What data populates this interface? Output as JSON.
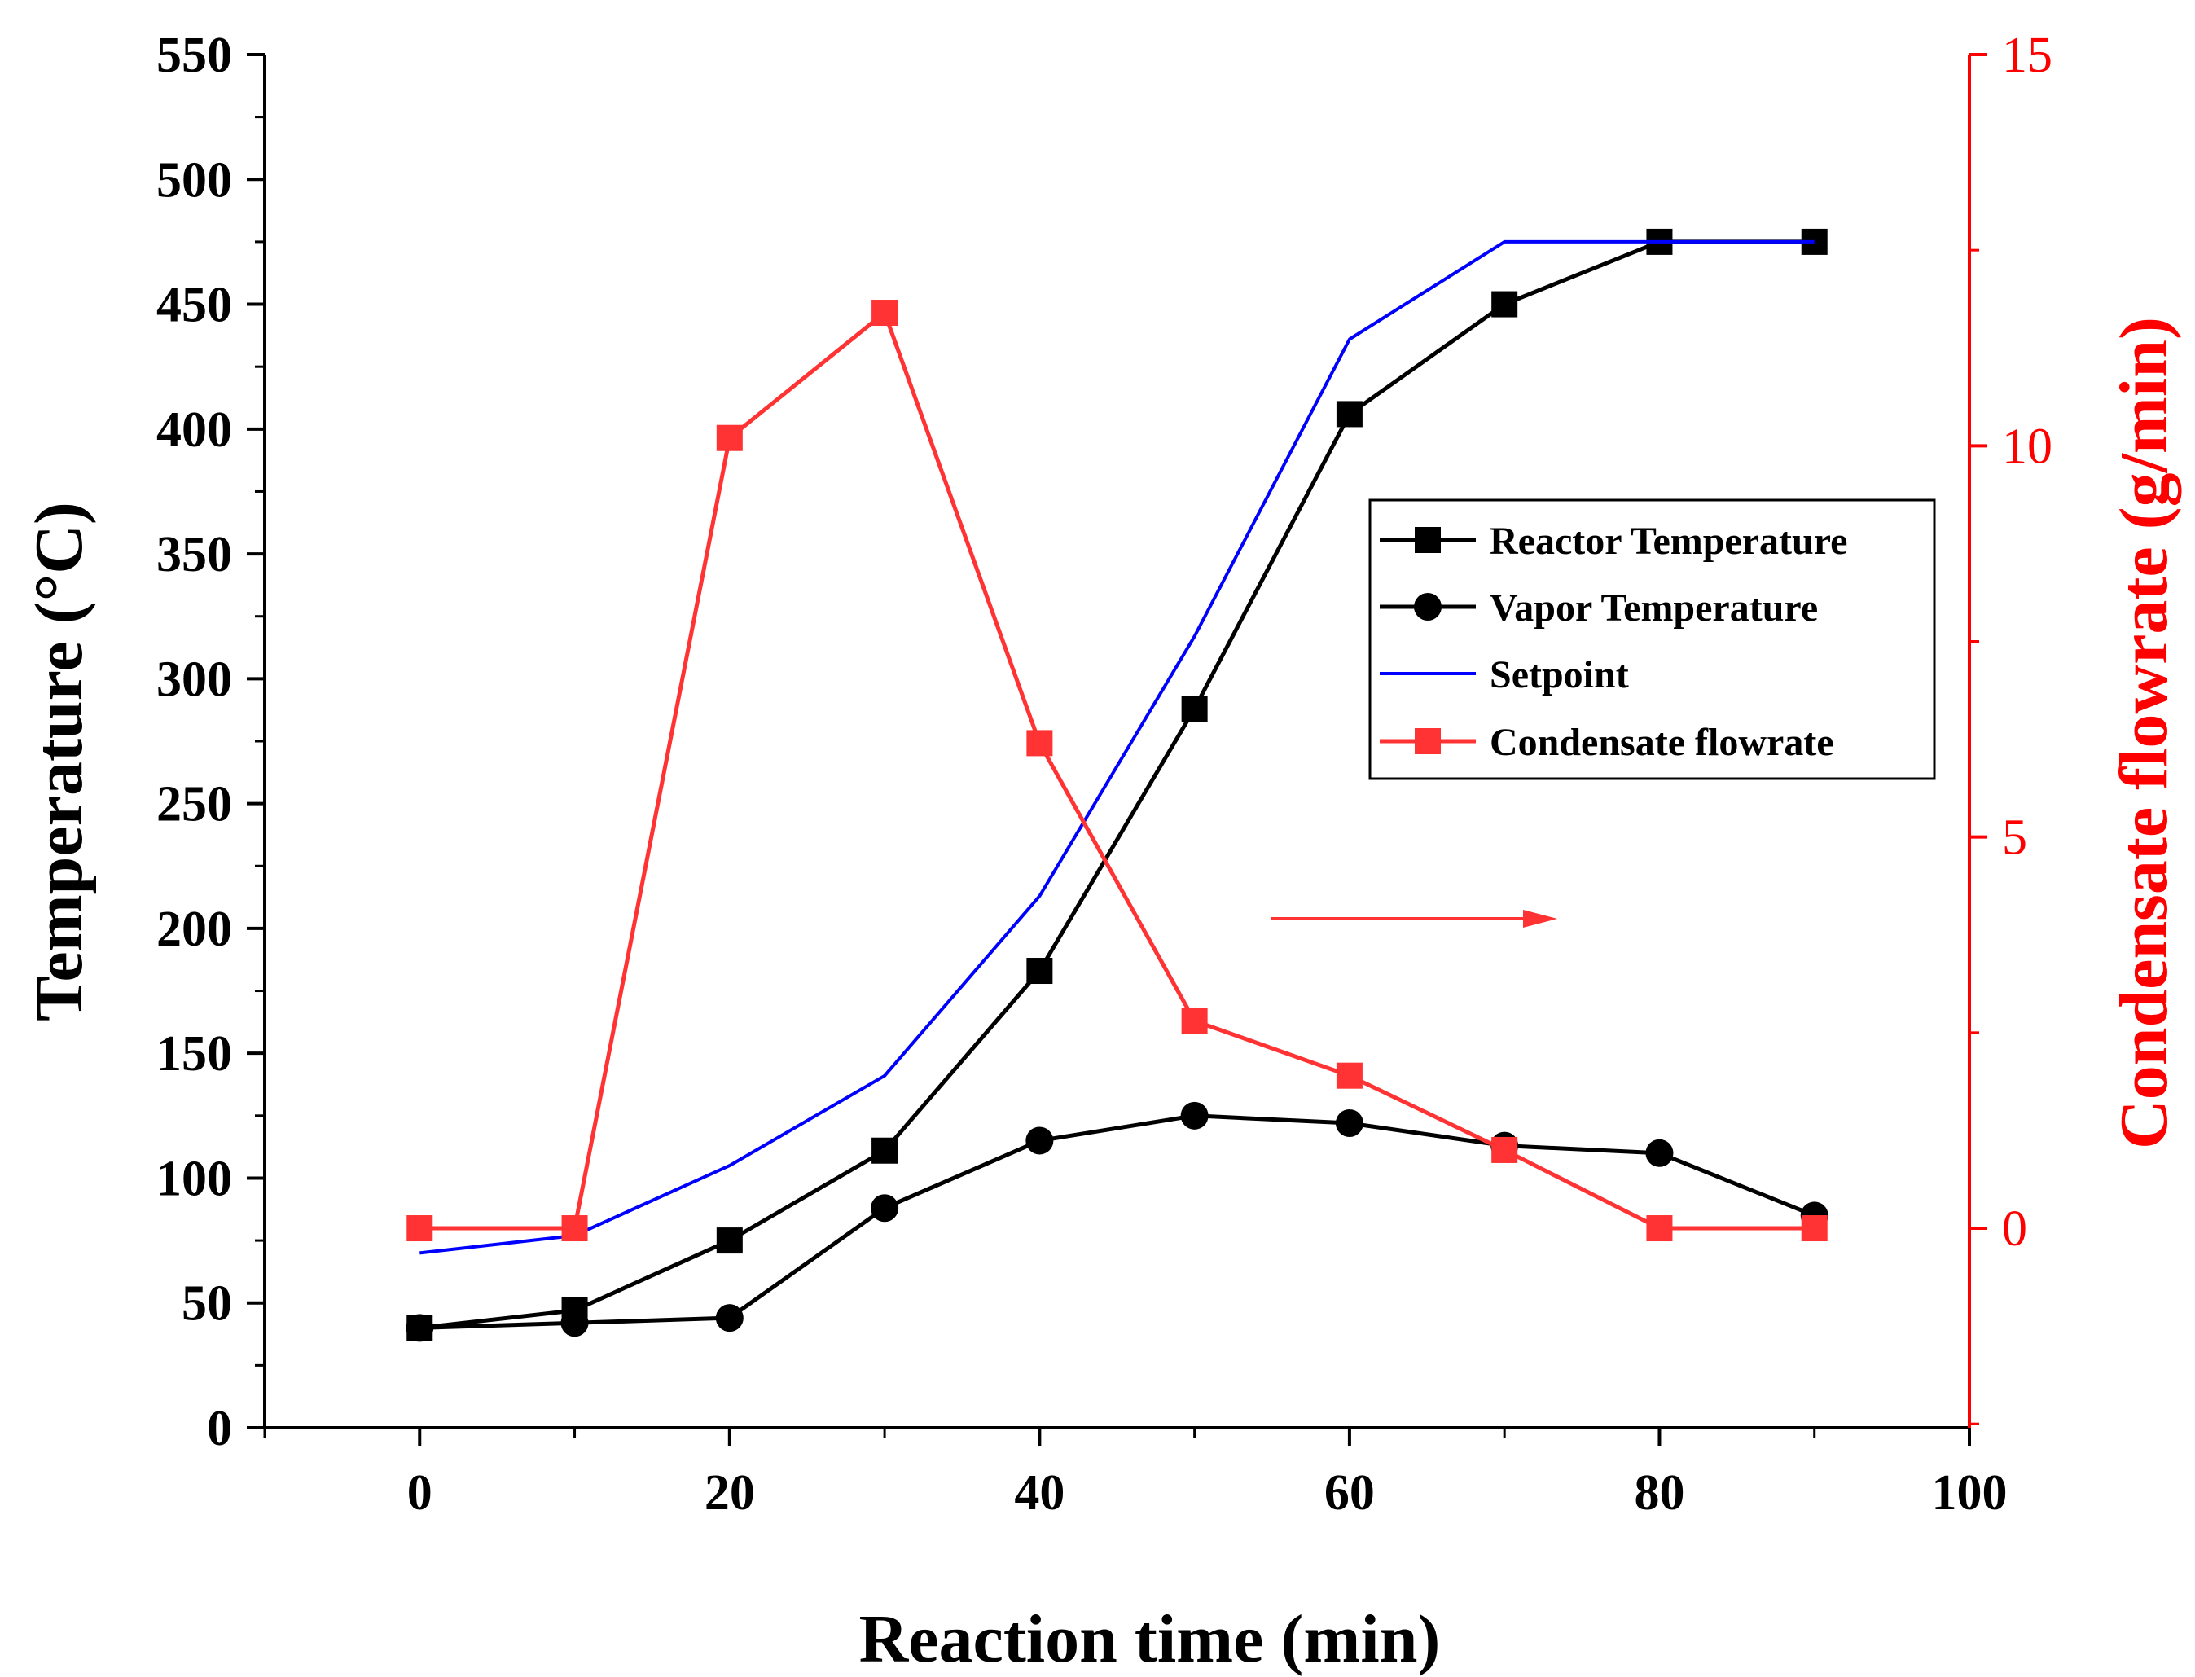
{
  "chart_data": {
    "type": "line",
    "xlabel": "Reaction time (min)",
    "ylabel": "Temperature (°C)",
    "y2label": "Condensate flowrate (g/min)",
    "xlim": [
      -10,
      100
    ],
    "ylim": [
      0,
      550
    ],
    "y2lim": [
      -2.55,
      15
    ],
    "xticks": [
      0,
      20,
      40,
      60,
      80,
      100
    ],
    "yticks": [
      0,
      50,
      100,
      150,
      200,
      250,
      300,
      350,
      400,
      450,
      500,
      550
    ],
    "y2ticks": [
      0,
      5,
      10,
      15
    ],
    "x_tick_labels": [
      "0",
      "20",
      "40",
      "60",
      "80",
      "100"
    ],
    "y_tick_labels": [
      "0",
      "50",
      "100",
      "150",
      "200",
      "250",
      "300",
      "350",
      "400",
      "450",
      "500",
      "550"
    ],
    "y2_tick_labels": [
      "0",
      "5",
      "10",
      "15"
    ],
    "grid": false,
    "legend_position": "center-right",
    "annotation": "red arrow pointing right toward the right-hand axis",
    "series": [
      {
        "name": "Reactor Temperature",
        "axis": "left",
        "marker": "square",
        "color": "#000000",
        "x": [
          0,
          10,
          20,
          30,
          40,
          50,
          60,
          70,
          80,
          90
        ],
        "values": [
          40,
          47,
          75,
          111,
          183,
          288,
          406,
          450,
          475,
          475
        ]
      },
      {
        "name": "Vapor Temperature",
        "axis": "left",
        "marker": "circle",
        "color": "#000000",
        "x": [
          0,
          10,
          20,
          30,
          40,
          50,
          60,
          70,
          80,
          90
        ],
        "values": [
          40,
          42,
          44,
          88,
          115,
          125,
          122,
          113,
          110,
          85
        ]
      },
      {
        "name": "Setpoint",
        "axis": "left",
        "marker": "none",
        "color": "#0000ff",
        "x": [
          0,
          10,
          20,
          30,
          40,
          50,
          60,
          70,
          80,
          90
        ],
        "values": [
          70,
          77,
          105,
          141,
          213,
          317,
          436,
          475,
          475,
          475
        ]
      },
      {
        "name": "Condensate flowrate",
        "axis": "right",
        "marker": "square",
        "color": "#ff3333",
        "x": [
          0,
          10,
          20,
          30,
          40,
          50,
          60,
          70,
          80,
          90
        ],
        "values": [
          0,
          0,
          10.1,
          11.7,
          6.2,
          2.65,
          1.95,
          1.0,
          0,
          0
        ]
      }
    ]
  },
  "colors": {
    "axis": "#000000",
    "right_axis": "#ff0000"
  }
}
